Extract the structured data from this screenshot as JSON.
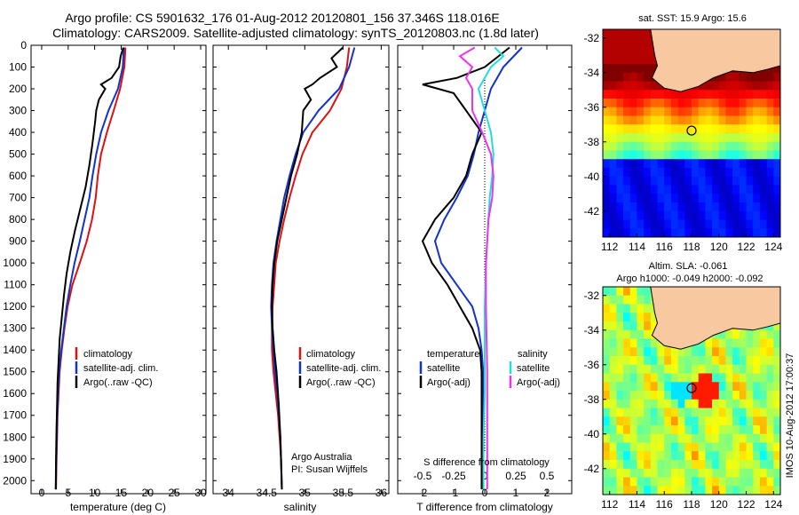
{
  "header": {
    "title_line1": "Argo profile: CS 5901632_176 01-Aug-2012 20120801_156 37.346S 118.016E",
    "title_line2": "Climatology: CARS2009. Satellite-adjusted climatology: synTS_20120803.nc (1.8d later)"
  },
  "colors": {
    "climatology": "#dd1111",
    "satellite": "#1133cc",
    "argo": "#000000",
    "satellite_s": "#22dddd",
    "argo_s": "#ee33ee",
    "land": "#f8c8a0"
  },
  "chart_data": [
    {
      "id": "temperature",
      "type": "line",
      "xlabel": "temperature (deg C)",
      "xlim": [
        -2,
        31
      ],
      "ylim": [
        0,
        2060
      ],
      "y_reversed": true,
      "xticks": [
        0,
        5,
        10,
        15,
        20,
        25,
        30
      ],
      "yticks": [
        0,
        100,
        200,
        300,
        400,
        500,
        600,
        700,
        800,
        900,
        1000,
        1100,
        1200,
        1300,
        1400,
        1500,
        1600,
        1700,
        1800,
        1900,
        2000
      ],
      "legend": [
        "climatology",
        "satellite-adj. clim.",
        "Argo(..raw -QC)"
      ],
      "series": [
        {
          "name": "climatology",
          "x": [
            15.8,
            15.6,
            14.8,
            13.6,
            12.3,
            11.2,
            10.6,
            10.2,
            9.5,
            8.5,
            7.2,
            5.8,
            4.9,
            4.3,
            3.8,
            3.4,
            3.2,
            3.0,
            2.9,
            2.8,
            2.7
          ],
          "y": [
            10,
            100,
            200,
            300,
            400,
            500,
            600,
            700,
            800,
            900,
            1000,
            1100,
            1200,
            1300,
            1400,
            1500,
            1600,
            1700,
            1800,
            1900,
            2040
          ]
        },
        {
          "name": "satellite-adj. clim.",
          "x": [
            15.5,
            15.3,
            14.4,
            12.6,
            11.2,
            10.3,
            9.6,
            9.0,
            8.1,
            7.2,
            6.2,
            5.4,
            4.7,
            4.2,
            3.7,
            3.3,
            3.1,
            2.95,
            2.85,
            2.75,
            2.65
          ],
          "y": [
            10,
            100,
            200,
            300,
            400,
            500,
            600,
            700,
            800,
            900,
            1000,
            1100,
            1200,
            1300,
            1400,
            1500,
            1600,
            1700,
            1800,
            1900,
            2040
          ]
        },
        {
          "name": "Argo(..raw -QC)",
          "x": [
            15.4,
            14.9,
            14.6,
            13.2,
            11.2,
            12.0,
            10.8,
            10.3,
            10.1,
            9.6,
            9.0,
            8.3,
            7.3,
            6.3,
            5.4,
            4.7,
            4.2,
            3.8,
            3.4,
            3.2,
            3.0,
            2.9,
            2.8,
            2.7,
            2.65
          ],
          "y": [
            10,
            50,
            100,
            150,
            180,
            200,
            250,
            300,
            350,
            450,
            550,
            650,
            750,
            850,
            950,
            1050,
            1150,
            1250,
            1350,
            1450,
            1550,
            1650,
            1750,
            1900,
            2040
          ]
        }
      ]
    },
    {
      "id": "salinity",
      "type": "line",
      "xlabel": "salinity",
      "xlim": [
        33.8,
        36.1
      ],
      "ylim": [
        0,
        2060
      ],
      "y_reversed": true,
      "xticks": [
        34,
        34.5,
        35,
        35.5,
        36
      ],
      "legend": [
        "climatology",
        "satellite-adj. clim.",
        "Argo(..raw -QC)"
      ],
      "annotation_line1": "Argo Australia",
      "annotation_line2": "PI: Susan Wijffels",
      "series": [
        {
          "name": "climatology",
          "x": [
            35.58,
            35.55,
            35.48,
            35.33,
            35.1,
            34.97,
            34.88,
            34.8,
            34.73,
            34.67,
            34.62,
            34.6,
            34.58,
            34.57,
            34.57,
            34.59,
            34.62,
            34.65,
            34.67,
            34.69,
            34.7
          ],
          "y": [
            10,
            100,
            200,
            300,
            400,
            500,
            600,
            700,
            800,
            900,
            1000,
            1100,
            1200,
            1300,
            1400,
            1500,
            1600,
            1700,
            1800,
            1900,
            2040
          ]
        },
        {
          "name": "satellite-adj. clim.",
          "x": [
            35.65,
            35.58,
            35.45,
            35.18,
            34.98,
            34.88,
            34.8,
            34.73,
            34.68,
            34.63,
            34.59,
            34.57,
            34.56,
            34.57,
            34.59,
            34.61,
            34.64,
            34.66,
            34.68,
            34.69,
            34.7
          ],
          "y": [
            10,
            100,
            200,
            300,
            400,
            500,
            600,
            700,
            800,
            900,
            1000,
            1100,
            1200,
            1300,
            1400,
            1500,
            1600,
            1700,
            1800,
            1900,
            2040
          ]
        },
        {
          "name": "Argo(..raw -QC)",
          "x": [
            35.5,
            35.35,
            35.42,
            35.2,
            35.1,
            35.0,
            35.08,
            34.98,
            34.96,
            34.9,
            34.82,
            34.76,
            34.7,
            34.64,
            34.6,
            34.58,
            34.57,
            34.58,
            34.6,
            34.63,
            34.66,
            34.68,
            34.7
          ],
          "y": [
            10,
            60,
            100,
            150,
            180,
            200,
            250,
            300,
            400,
            500,
            600,
            700,
            800,
            900,
            1000,
            1100,
            1200,
            1300,
            1400,
            1500,
            1650,
            1800,
            2040
          ]
        }
      ]
    },
    {
      "id": "differences",
      "type": "line",
      "xlabel": "T difference from climatology",
      "top_label": "S difference from climatology",
      "xlim": [
        -2.8,
        2.8
      ],
      "ylim": [
        0,
        2060
      ],
      "y_reversed": true,
      "xticks": [
        -2,
        -1,
        0,
        1,
        2
      ],
      "s_ticks": [
        -0.5,
        -0.25,
        0,
        0.25,
        0.5
      ],
      "legend_temperature_title": "temperature",
      "legend_salinity_title": "salinity",
      "legend": [
        "satellite",
        "Argo(-adj)",
        "satellite",
        "Argo(-adj)"
      ],
      "series": [
        {
          "name": "temperature satellite",
          "x": [
            1.2,
            0.6,
            0.2,
            0.0,
            -0.2,
            -0.35,
            -0.55,
            -0.9,
            -1.3,
            -1.6,
            -1.4,
            -0.9,
            -0.4,
            -0.2,
            -0.1,
            -0.05,
            -0.05,
            -0.05,
            -0.05,
            -0.05
          ],
          "y": [
            10,
            100,
            200,
            300,
            400,
            500,
            600,
            700,
            800,
            900,
            1000,
            1100,
            1200,
            1300,
            1400,
            1500,
            1600,
            1700,
            1800,
            2040
          ]
        },
        {
          "name": "temperature Argo(-adj)",
          "x": [
            0.8,
            0.0,
            -0.9,
            -2.0,
            -1.0,
            -0.6,
            -0.1,
            -0.4,
            -0.6,
            -1.0,
            -1.6,
            -2.0,
            -1.7,
            -1.2,
            -0.8,
            -0.4,
            -0.15,
            -0.1,
            -0.1,
            -0.1
          ],
          "y": [
            10,
            100,
            150,
            180,
            220,
            300,
            400,
            500,
            600,
            700,
            800,
            900,
            1000,
            1100,
            1200,
            1300,
            1400,
            1500,
            1800,
            2040
          ]
        },
        {
          "name": "salinity satellite",
          "x": [
            0.08,
            0.15,
            0.05,
            -0.05,
            0.0,
            0.05,
            0.07,
            0.06,
            0.04,
            0.03,
            0.02,
            0.01,
            0.0,
            0.0,
            0.0,
            -0.01,
            -0.01
          ],
          "y": [
            10,
            50,
            100,
            200,
            300,
            400,
            500,
            600,
            700,
            800,
            900,
            1000,
            1200,
            1400,
            1600,
            1800,
            2040
          ]
        },
        {
          "name": "salinity Argo(-adj)",
          "x": [
            -0.08,
            -0.2,
            -0.1,
            -0.15,
            -0.1,
            -0.1,
            -0.02,
            0.05,
            0.07,
            0.06,
            0.03,
            0.02,
            0.01,
            0.01,
            0.02,
            0.02,
            0.02
          ],
          "y": [
            10,
            50,
            100,
            150,
            200,
            300,
            400,
            500,
            600,
            700,
            800,
            900,
            1000,
            1200,
            1500,
            1800,
            2040
          ]
        }
      ]
    },
    {
      "id": "sst_map",
      "type": "heatmap",
      "title": "sat. SST: 15.9 Argo: 15.6",
      "xlim": [
        111.5,
        124.5
      ],
      "ylim": [
        -43.5,
        -31.5
      ],
      "xticks": [
        112,
        114,
        116,
        118,
        120,
        122,
        124
      ],
      "yticks": [
        -32,
        -34,
        -36,
        -38,
        -40,
        -42
      ],
      "marker": {
        "lon": 118.0,
        "lat": -37.35
      }
    },
    {
      "id": "sla_map",
      "type": "heatmap",
      "title_line1": "Altim. SLA: -0.061",
      "title_line2": "Argo h1000: -0.049 h2000: -0.092",
      "xlim": [
        111.5,
        124.5
      ],
      "ylim": [
        -43.5,
        -31.5
      ],
      "xticks": [
        112,
        114,
        116,
        118,
        120,
        122,
        124
      ],
      "yticks": [
        -32,
        -34,
        -36,
        -38,
        -40,
        -42
      ],
      "marker": {
        "lon": 118.0,
        "lat": -37.35
      }
    }
  ],
  "footer": {
    "side_label": "IMOS 10-Aug-2012 17:00:37"
  }
}
